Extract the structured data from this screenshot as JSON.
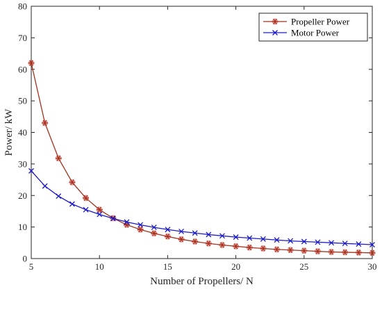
{
  "colors": {
    "propeller": "#A0321E",
    "propeller_marker": "#D4524A",
    "motor": "#1A1AC8",
    "axis": "#262626"
  },
  "chart_data": {
    "type": "line",
    "xlabel": "Number of Propellers/ N",
    "ylabel": "Power/ kW",
    "xlim": [
      5,
      30
    ],
    "ylim": [
      0,
      80
    ],
    "xticks": [
      5,
      10,
      15,
      20,
      25,
      30
    ],
    "yticks": [
      0,
      10,
      20,
      30,
      40,
      50,
      60,
      70,
      80
    ],
    "grid": false,
    "legend_position": "top-right",
    "x": [
      5,
      6,
      7,
      8,
      9,
      10,
      11,
      12,
      13,
      14,
      15,
      16,
      17,
      18,
      19,
      20,
      21,
      22,
      23,
      24,
      25,
      26,
      27,
      28,
      29,
      30
    ],
    "series": [
      {
        "name": "Propeller Power",
        "marker": "asterisk",
        "color_key": "propeller",
        "values": [
          62.0,
          43.0,
          31.8,
          24.2,
          19.2,
          15.5,
          12.8,
          10.7,
          9.2,
          8.0,
          7.0,
          6.1,
          5.4,
          4.8,
          4.3,
          3.9,
          3.5,
          3.2,
          2.9,
          2.7,
          2.5,
          2.3,
          2.1,
          2.0,
          1.9,
          1.8
        ]
      },
      {
        "name": "Motor Power",
        "marker": "x",
        "color_key": "motor",
        "values": [
          27.8,
          23.0,
          19.8,
          17.3,
          15.5,
          14.0,
          12.7,
          11.6,
          10.7,
          9.9,
          9.2,
          8.6,
          8.1,
          7.6,
          7.2,
          6.8,
          6.5,
          6.2,
          5.9,
          5.6,
          5.4,
          5.2,
          5.0,
          4.8,
          4.6,
          4.4
        ]
      }
    ]
  }
}
